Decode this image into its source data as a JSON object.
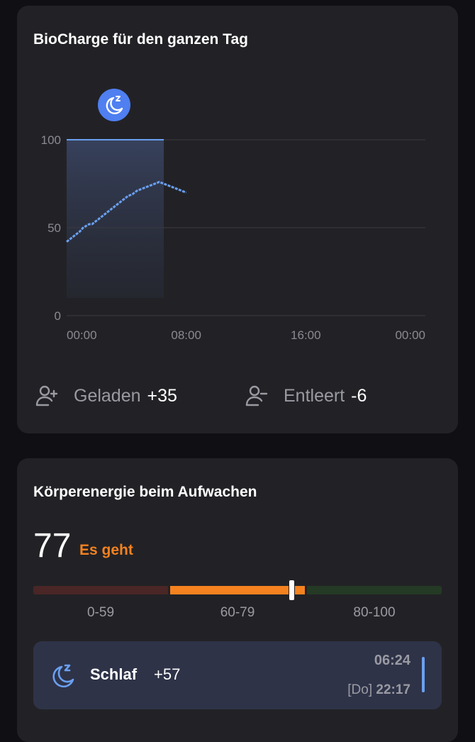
{
  "biocharge_card": {
    "title": "BioCharge für den ganzen Tag",
    "charged_label": "Geladen",
    "charged_value": "+35",
    "drained_label": "Entleert",
    "drained_value": "-6",
    "icons": [
      "user-plus-icon",
      "user-minus-icon",
      "sleep-moon-icon"
    ]
  },
  "chart_data": {
    "type": "line",
    "xlabel": "",
    "ylabel": "",
    "x_ticks": [
      "00:00",
      "08:00",
      "16:00",
      "00:00"
    ],
    "y_ticks": [
      0,
      50,
      100
    ],
    "ylim": [
      0,
      100
    ],
    "xlim_hours": [
      0,
      24
    ],
    "grid": true,
    "sleep_period_hours": [
      0,
      6.5
    ],
    "sleep_level": 100,
    "series": [
      {
        "x_hours": [
          0,
          0.3,
          0.6,
          0.9,
          1.0,
          1.1,
          1.3,
          1.5,
          1.7,
          2.0,
          2.3,
          2.6,
          2.9,
          3.2,
          3.5,
          3.8,
          4.1,
          4.4,
          4.7,
          5.0,
          5.3,
          5.6,
          5.9,
          6.2,
          6.5,
          6.8,
          7.1,
          7.4,
          7.7,
          8.0
        ],
        "values": [
          42,
          44,
          46,
          48,
          49,
          50,
          51,
          52,
          52,
          54,
          56,
          58,
          60,
          62,
          64,
          66,
          68,
          69,
          71,
          72,
          73,
          74,
          75,
          76,
          75,
          74,
          73,
          72,
          71,
          70
        ]
      }
    ],
    "line_color": "#6aa0f0"
  },
  "wake_card": {
    "title": "Körperenergie beim Aufwachen",
    "score": "77",
    "status": "Es geht",
    "score_value": 77,
    "ranges": [
      "0-59",
      "60-79",
      "80-100"
    ],
    "colors": {
      "low": "#4a2626",
      "mid": "#f5821f",
      "high": "#243a24"
    },
    "sleep": {
      "label": "Schlaf",
      "value": "+57",
      "end_time": "06:24",
      "start_day": "[Do]",
      "start_time": "22:17"
    }
  }
}
